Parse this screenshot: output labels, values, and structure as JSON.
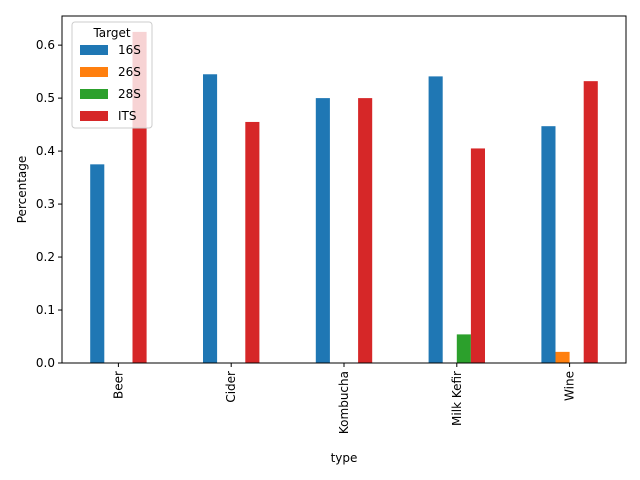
{
  "chart_data": {
    "type": "bar",
    "title": "",
    "xlabel": "type",
    "ylabel": "Percentage",
    "categories": [
      "Beer",
      "Cider",
      "Kombucha",
      "Milk Kefir",
      "Wine"
    ],
    "ylim": [
      0,
      0.655
    ],
    "yticks": [
      0.0,
      0.1,
      0.2,
      0.3,
      0.4,
      0.5,
      0.6
    ],
    "ytick_labels": [
      "0.0",
      "0.1",
      "0.2",
      "0.3",
      "0.4",
      "0.5",
      "0.6"
    ],
    "grid": false,
    "legend": {
      "title": "Target",
      "placement": "top-left"
    },
    "series": [
      {
        "name": "16S",
        "color": "#1f77b4",
        "values": [
          0.375,
          0.545,
          0.5,
          0.541,
          0.447
        ]
      },
      {
        "name": "26S",
        "color": "#ff7f0e",
        "values": [
          0,
          0,
          0,
          0,
          0.021
        ]
      },
      {
        "name": "28S",
        "color": "#2ca02c",
        "values": [
          0,
          0,
          0,
          0.054,
          0
        ]
      },
      {
        "name": "ITS",
        "color": "#d62728",
        "values": [
          0.625,
          0.455,
          0.5,
          0.405,
          0.532
        ]
      }
    ]
  }
}
